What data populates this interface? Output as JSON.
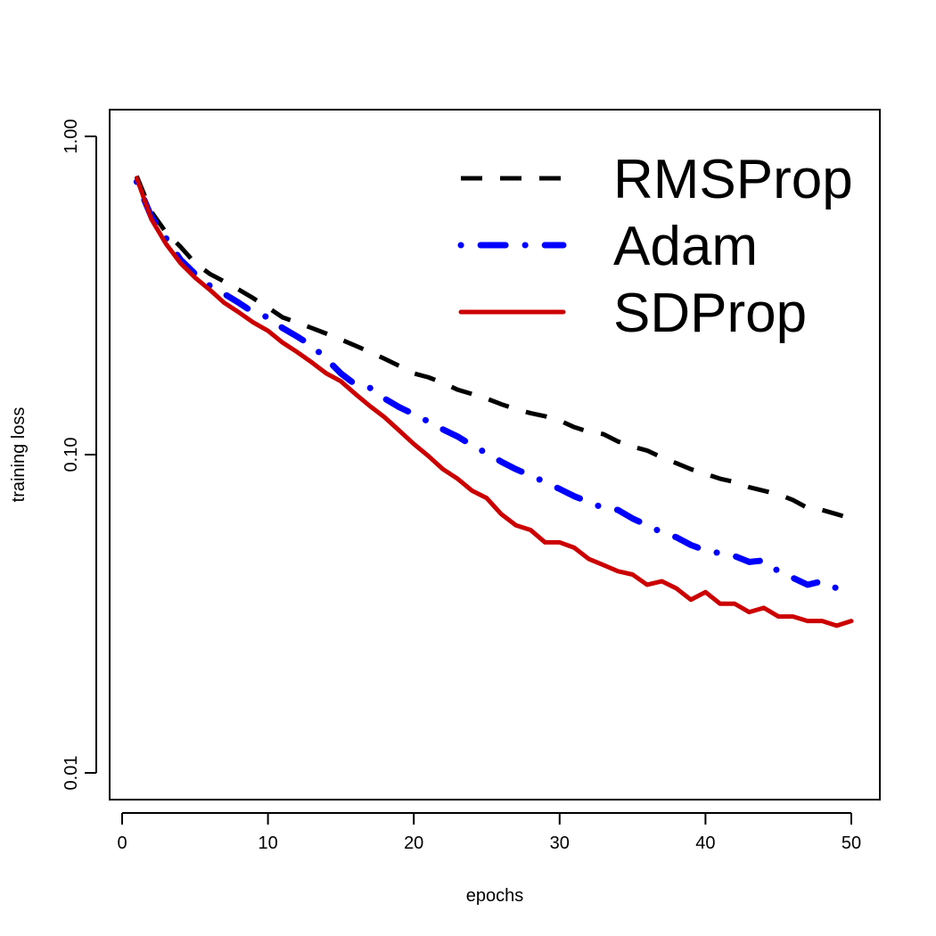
{
  "chart_data": {
    "type": "line",
    "title": "",
    "xlabel": "epochs",
    "ylabel": "training loss",
    "x_scale": "linear",
    "y_scale": "log",
    "xlim": [
      0,
      52
    ],
    "ylim": [
      0.008,
      1.2
    ],
    "xticks": [
      0,
      10,
      20,
      30,
      40,
      50
    ],
    "xtick_labels": [
      "0",
      "10",
      "20",
      "30",
      "40",
      "50"
    ],
    "yticks": [
      0.01,
      0.1,
      1.0
    ],
    "ytick_labels": [
      "0.01",
      "0.10",
      "1.00"
    ],
    "grid": false,
    "legend_position": "top-right",
    "x": [
      1,
      2,
      3,
      4,
      5,
      6,
      7,
      8,
      9,
      10,
      11,
      12,
      13,
      14,
      15,
      16,
      17,
      18,
      19,
      20,
      21,
      22,
      23,
      24,
      25,
      26,
      27,
      28,
      29,
      30,
      31,
      32,
      33,
      34,
      35,
      36,
      37,
      38,
      39,
      40,
      41,
      42,
      43,
      44,
      45,
      46,
      47,
      48,
      49,
      50
    ],
    "series": [
      {
        "name": "RMSProp",
        "color": "#000000",
        "line_style": "dashed",
        "values": [
          0.75,
          0.58,
          0.5,
          0.45,
          0.4,
          0.37,
          0.35,
          0.33,
          0.31,
          0.29,
          0.27,
          0.26,
          0.25,
          0.24,
          0.23,
          0.22,
          0.21,
          0.2,
          0.19,
          0.18,
          0.175,
          0.168,
          0.16,
          0.155,
          0.15,
          0.144,
          0.139,
          0.135,
          0.132,
          0.128,
          0.122,
          0.118,
          0.116,
          0.11,
          0.106,
          0.103,
          0.098,
          0.094,
          0.09,
          0.087,
          0.084,
          0.082,
          0.079,
          0.077,
          0.075,
          0.072,
          0.068,
          0.067,
          0.065,
          0.063
        ]
      },
      {
        "name": "Adam",
        "color": "#0000ff",
        "line_style": "dashdot",
        "values": [
          0.72,
          0.56,
          0.48,
          0.41,
          0.37,
          0.34,
          0.32,
          0.3,
          0.28,
          0.27,
          0.25,
          0.235,
          0.22,
          0.2,
          0.18,
          0.166,
          0.162,
          0.15,
          0.141,
          0.134,
          0.127,
          0.12,
          0.114,
          0.107,
          0.101,
          0.095,
          0.09,
          0.086,
          0.082,
          0.078,
          0.074,
          0.071,
          0.068,
          0.067,
          0.063,
          0.06,
          0.057,
          0.055,
          0.052,
          0.05,
          0.049,
          0.048,
          0.046,
          0.0465,
          0.043,
          0.041,
          0.039,
          0.04,
          0.038,
          0.036
        ]
      },
      {
        "name": "SDProp",
        "color": "#cc0000",
        "line_style": "solid",
        "values": [
          0.74,
          0.55,
          0.46,
          0.4,
          0.36,
          0.33,
          0.3,
          0.28,
          0.26,
          0.245,
          0.225,
          0.21,
          0.195,
          0.18,
          0.17,
          0.155,
          0.142,
          0.131,
          0.119,
          0.108,
          0.099,
          0.09,
          0.084,
          0.077,
          0.073,
          0.065,
          0.06,
          0.058,
          0.053,
          0.053,
          0.051,
          0.047,
          0.045,
          0.043,
          0.042,
          0.039,
          0.04,
          0.038,
          0.035,
          0.037,
          0.034,
          0.034,
          0.032,
          0.033,
          0.031,
          0.031,
          0.03,
          0.03,
          0.029,
          0.03
        ]
      }
    ]
  }
}
